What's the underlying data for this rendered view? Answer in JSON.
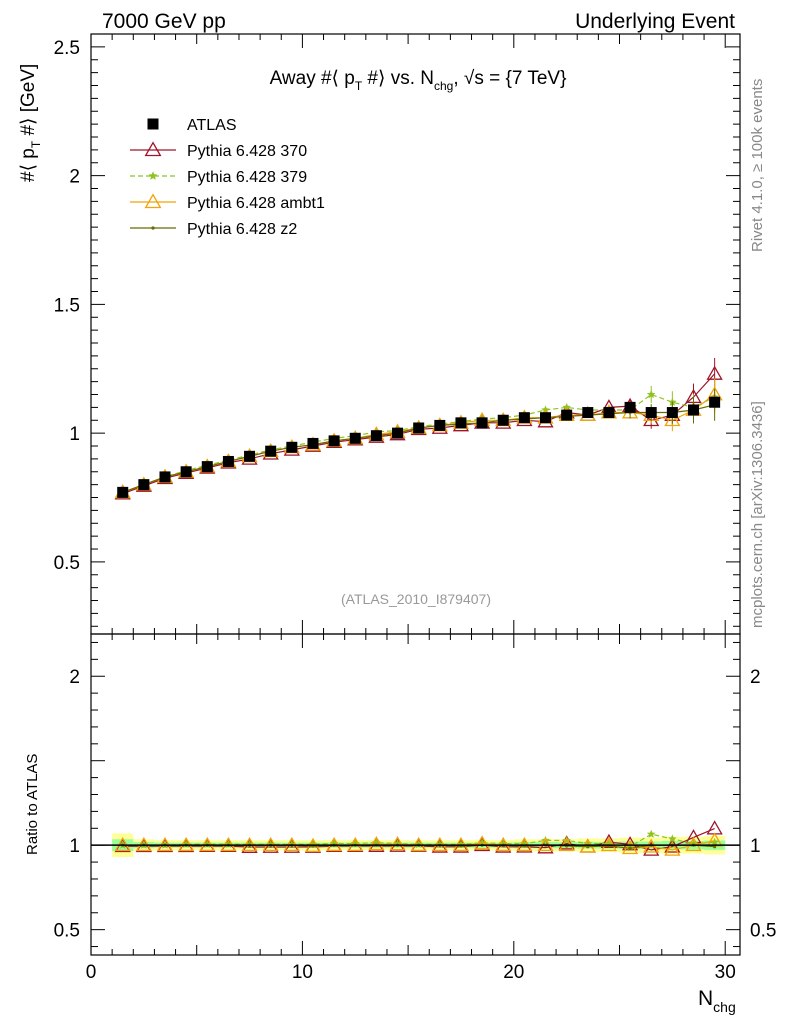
{
  "header": {
    "left": "7000 GeV pp",
    "right": "Underlying Event"
  },
  "side_labels": {
    "rivet": "Rivet 4.1.0, ≥ 100k events",
    "mcplots": "mcplots.cern.ch [arXiv:1306.3436]"
  },
  "watermark": "(ATLAS_2010_I879407)",
  "colors": {
    "atlas": "#000000",
    "p370": "#a0142a",
    "p379": "#8fc31f",
    "ambt1": "#f0a30a",
    "z2": "#6b6b00",
    "band_yellow": "#ffff99",
    "band_green": "#99ff99"
  },
  "chart_data": {
    "type": "scatter",
    "title": "Away #⟨ p_T #⟩ vs. N_chg, √s = {7 TeV}",
    "title_parts": {
      "pre": "Away #⟨ p",
      "sub1": "T",
      "mid": " #⟩ vs. N",
      "sub2": "chg",
      "post": ", √s = {7 TeV}"
    },
    "xlabel": "N_chg",
    "xlabel_parts": {
      "main": "N",
      "sub": "chg"
    },
    "ylabel": "#⟨ p_T #⟩ [GeV]",
    "ylabel_parts": {
      "pre": "#⟨ p",
      "sub": "T",
      "post": " #⟩ [GeV]"
    },
    "ratio_ylabel": "Ratio to ATLAS",
    "xlim": [
      0,
      30.7
    ],
    "ylim": [
      0.22,
      2.55
    ],
    "ratio_ylim": [
      0.35,
      2.25
    ],
    "x_ticks": [
      0,
      10,
      20,
      30
    ],
    "x_tick_labels": [
      "0",
      "10",
      "20",
      "30"
    ],
    "y_ticks": [
      0.5,
      1,
      1.5,
      2,
      2.5
    ],
    "y_tick_labels": [
      "0.5",
      "1",
      "1.5",
      "2",
      "2.5"
    ],
    "ratio_ticks": [
      0.5,
      1,
      2
    ],
    "ratio_tick_labels": [
      "0.5",
      "1",
      "2"
    ],
    "legend_position": "top-left",
    "x": [
      1.5,
      2.5,
      3.5,
      4.5,
      5.5,
      6.5,
      7.5,
      8.5,
      9.5,
      10.5,
      11.5,
      12.5,
      13.5,
      14.5,
      15.5,
      16.5,
      17.5,
      18.5,
      19.5,
      20.5,
      21.5,
      22.5,
      23.5,
      24.5,
      25.5,
      26.5,
      27.5,
      28.5,
      29.5
    ],
    "series": [
      {
        "name": "ATLAS",
        "marker": "square",
        "values": [
          0.77,
          0.8,
          0.83,
          0.85,
          0.87,
          0.89,
          0.91,
          0.93,
          0.945,
          0.96,
          0.97,
          0.98,
          0.99,
          1.0,
          1.02,
          1.03,
          1.04,
          1.04,
          1.05,
          1.06,
          1.06,
          1.07,
          1.08,
          1.08,
          1.1,
          1.08,
          1.08,
          1.09,
          1.12
        ]
      },
      {
        "name": "Pythia 6.428 370",
        "marker": "triangle-open",
        "values": [
          0.765,
          0.795,
          0.825,
          0.845,
          0.865,
          0.885,
          0.9,
          0.92,
          0.935,
          0.95,
          0.965,
          0.975,
          0.985,
          0.995,
          1.015,
          1.02,
          1.03,
          1.04,
          1.04,
          1.05,
          1.045,
          1.08,
          1.07,
          1.1,
          1.105,
          1.05,
          1.07,
          1.14,
          1.23
        ]
      },
      {
        "name": "Pythia 6.428 379",
        "marker": "star",
        "values": [
          0.77,
          0.8,
          0.83,
          0.855,
          0.875,
          0.895,
          0.915,
          0.935,
          0.95,
          0.965,
          0.98,
          0.99,
          1.005,
          1.01,
          1.025,
          1.035,
          1.045,
          1.055,
          1.06,
          1.07,
          1.09,
          1.1,
          1.09,
          1.09,
          1.09,
          1.15,
          1.12,
          1.1,
          1.14
        ]
      },
      {
        "name": "Pythia 6.428 ambt1",
        "marker": "triangle-open",
        "values": [
          0.77,
          0.8,
          0.83,
          0.85,
          0.87,
          0.89,
          0.91,
          0.93,
          0.945,
          0.955,
          0.97,
          0.98,
          0.995,
          1.005,
          1.02,
          1.03,
          1.04,
          1.05,
          1.05,
          1.06,
          1.06,
          1.07,
          1.07,
          1.08,
          1.08,
          1.07,
          1.05,
          1.09,
          1.15
        ]
      },
      {
        "name": "Pythia 6.428 z2",
        "marker": "dot",
        "values": [
          0.77,
          0.8,
          0.83,
          0.85,
          0.87,
          0.89,
          0.91,
          0.93,
          0.945,
          0.955,
          0.97,
          0.98,
          0.99,
          1.0,
          1.02,
          1.03,
          1.035,
          1.04,
          1.05,
          1.055,
          1.06,
          1.065,
          1.07,
          1.075,
          1.08,
          1.08,
          1.08,
          1.09,
          1.11
        ]
      }
    ],
    "ratio_band_yellow": [
      0.07,
      0.035,
      0.03,
      0.03,
      0.03,
      0.03,
      0.03,
      0.03,
      0.03,
      0.03,
      0.03,
      0.03,
      0.03,
      0.03,
      0.03,
      0.03,
      0.03,
      0.03,
      0.03,
      0.035,
      0.035,
      0.035,
      0.04,
      0.04,
      0.045,
      0.045,
      0.05,
      0.05,
      0.055
    ],
    "ratio_band_green": [
      0.035,
      0.018,
      0.015,
      0.015,
      0.015,
      0.015,
      0.015,
      0.015,
      0.015,
      0.015,
      0.015,
      0.015,
      0.015,
      0.015,
      0.015,
      0.015,
      0.015,
      0.015,
      0.015,
      0.018,
      0.018,
      0.018,
      0.02,
      0.02,
      0.022,
      0.022,
      0.025,
      0.025,
      0.028
    ]
  }
}
